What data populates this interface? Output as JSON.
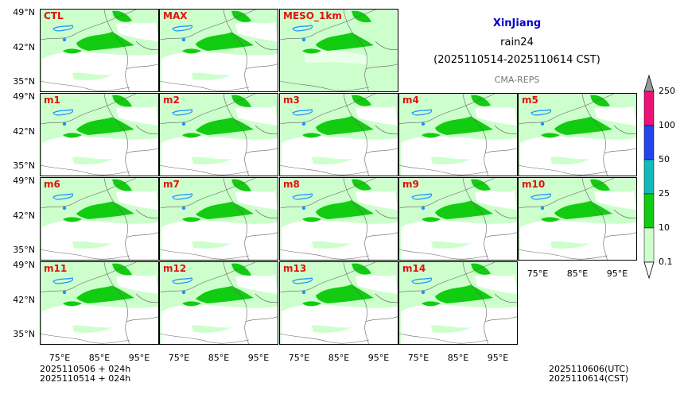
{
  "title": {
    "region": "XinJiang",
    "variable": "rain24",
    "period": "(2025110514-2025110614 CST)",
    "source": "CMA-REPS"
  },
  "panels": [
    "CTL",
    "MAX",
    "MESO_1km",
    "m1",
    "m2",
    "m3",
    "m4",
    "m5",
    "m6",
    "m7",
    "m8",
    "m9",
    "m10",
    "m11",
    "m12",
    "m13",
    "m14"
  ],
  "axes": {
    "lat_ticks": [
      "49°N",
      "42°N",
      "35°N"
    ],
    "lon_ticks": [
      "75°E",
      "85°E",
      "95°E"
    ]
  },
  "colorbar": {
    "levels": [
      "0.1",
      "10",
      "25",
      "50",
      "100",
      "250"
    ],
    "colors": [
      "#ccffcc",
      "#11cc11",
      "#11bbbb",
      "#2244ee",
      "#ee1177"
    ],
    "extend_colors": {
      "below": "#ffffff",
      "above": "#9a9a9a"
    }
  },
  "footer": {
    "init_utc_line": "2025110506  +  024h",
    "init_cst_line": "2025110514  +  024h",
    "valid_utc": "2025110606(UTC)",
    "valid_cst": "2025110614(CST)"
  },
  "map_colors": {
    "light_rain": "#ccffcc",
    "moderate_rain": "#11cc11",
    "lake": "#1e90ff",
    "boundary": "#666666"
  }
}
